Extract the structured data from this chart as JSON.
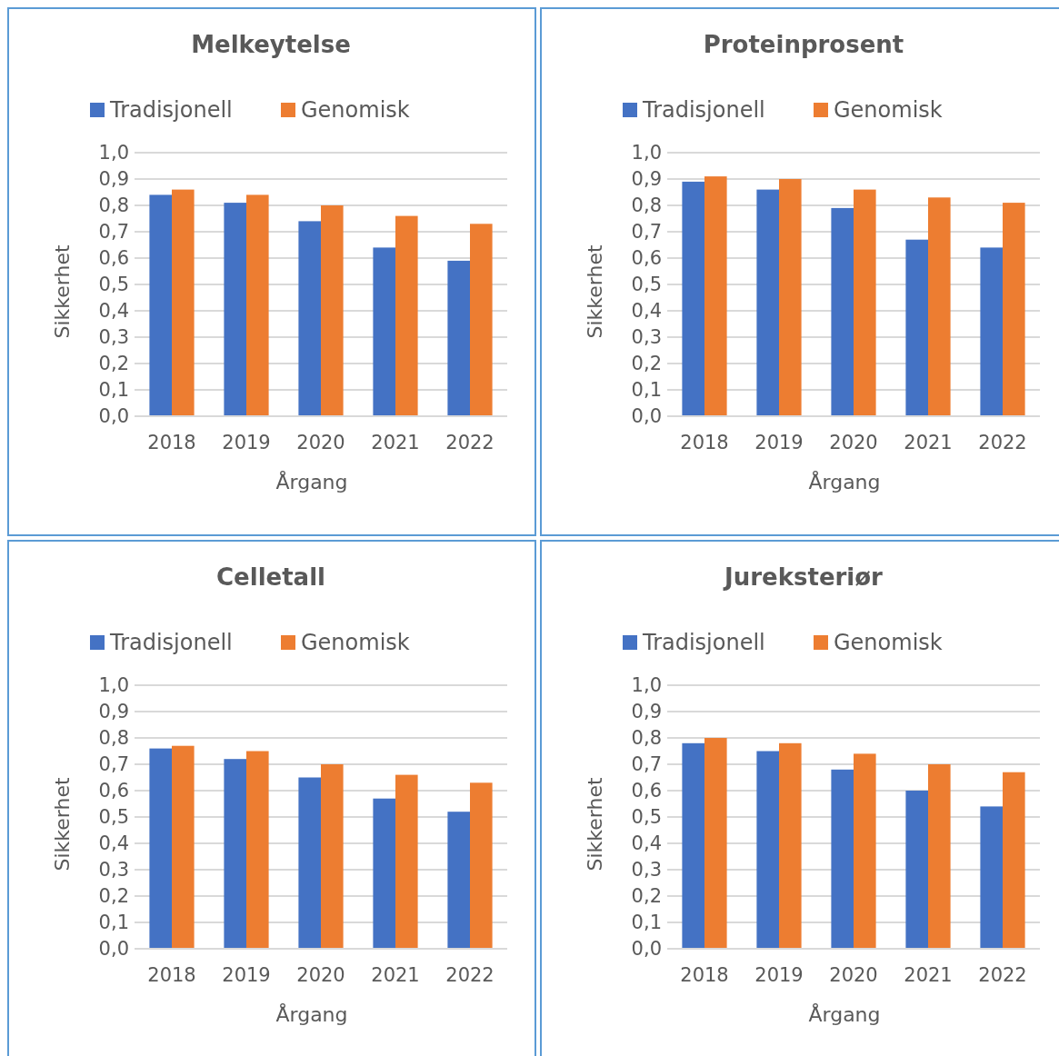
{
  "chart_data": [
    {
      "type": "bar",
      "title": "Melkeytelse",
      "xlabel": "Årgang",
      "ylabel": "Sikkerhet",
      "categories": [
        "2018",
        "2019",
        "2020",
        "2021",
        "2022"
      ],
      "series": [
        {
          "name": "Tradisjonell",
          "color": "#4472c4",
          "values": [
            0.84,
            0.81,
            0.74,
            0.64,
            0.59
          ]
        },
        {
          "name": "Genomisk",
          "color": "#ed7d31",
          "values": [
            0.86,
            0.84,
            0.8,
            0.76,
            0.73
          ]
        }
      ],
      "ylim": [
        0,
        1
      ],
      "yticks": [
        {
          "value": 0,
          "label": "0,0"
        },
        {
          "value": 0.1,
          "label": "0,1"
        },
        {
          "value": 0.2,
          "label": "0,2"
        },
        {
          "value": 0.3,
          "label": "0,3"
        },
        {
          "value": 0.4,
          "label": "0,4"
        },
        {
          "value": 0.5,
          "label": "0,5"
        },
        {
          "value": 0.6,
          "label": "0,6"
        },
        {
          "value": 0.7,
          "label": "0,7"
        },
        {
          "value": 0.8,
          "label": "0,8"
        },
        {
          "value": 0.9,
          "label": "0,9"
        },
        {
          "value": 1,
          "label": "1,0"
        }
      ],
      "grid": "y",
      "legend": "top"
    },
    {
      "type": "bar",
      "title": "Proteinprosent",
      "xlabel": "Årgang",
      "ylabel": "Sikkerhet",
      "categories": [
        "2018",
        "2019",
        "2020",
        "2021",
        "2022"
      ],
      "series": [
        {
          "name": "Tradisjonell",
          "color": "#4472c4",
          "values": [
            0.89,
            0.86,
            0.79,
            0.67,
            0.64
          ]
        },
        {
          "name": "Genomisk",
          "color": "#ed7d31",
          "values": [
            0.91,
            0.9,
            0.86,
            0.83,
            0.81
          ]
        }
      ],
      "ylim": [
        0,
        1
      ],
      "yticks": [
        {
          "value": 0,
          "label": "0,0"
        },
        {
          "value": 0.1,
          "label": "0,1"
        },
        {
          "value": 0.2,
          "label": "0,2"
        },
        {
          "value": 0.3,
          "label": "0,3"
        },
        {
          "value": 0.4,
          "label": "0,4"
        },
        {
          "value": 0.5,
          "label": "0,5"
        },
        {
          "value": 0.6,
          "label": "0,6"
        },
        {
          "value": 0.7,
          "label": "0,7"
        },
        {
          "value": 0.8,
          "label": "0,8"
        },
        {
          "value": 0.9,
          "label": "0,9"
        },
        {
          "value": 1,
          "label": "1,0"
        }
      ],
      "grid": "y",
      "legend": "top"
    },
    {
      "type": "bar",
      "title": "Celletall",
      "xlabel": "Årgang",
      "ylabel": "Sikkerhet",
      "categories": [
        "2018",
        "2019",
        "2020",
        "2021",
        "2022"
      ],
      "series": [
        {
          "name": "Tradisjonell",
          "color": "#4472c4",
          "values": [
            0.76,
            0.72,
            0.65,
            0.57,
            0.52
          ]
        },
        {
          "name": "Genomisk",
          "color": "#ed7d31",
          "values": [
            0.77,
            0.75,
            0.7,
            0.66,
            0.63
          ]
        }
      ],
      "ylim": [
        0,
        1
      ],
      "yticks": [
        {
          "value": 0,
          "label": "0,0"
        },
        {
          "value": 0.1,
          "label": "0,1"
        },
        {
          "value": 0.2,
          "label": "0,2"
        },
        {
          "value": 0.3,
          "label": "0,3"
        },
        {
          "value": 0.4,
          "label": "0,4"
        },
        {
          "value": 0.5,
          "label": "0,5"
        },
        {
          "value": 0.6,
          "label": "0,6"
        },
        {
          "value": 0.7,
          "label": "0,7"
        },
        {
          "value": 0.8,
          "label": "0,8"
        },
        {
          "value": 0.9,
          "label": "0,9"
        },
        {
          "value": 1,
          "label": "1,0"
        }
      ],
      "grid": "y",
      "legend": "top"
    },
    {
      "type": "bar",
      "title": "Jureksteriør",
      "xlabel": "Årgang",
      "ylabel": "Sikkerhet",
      "categories": [
        "2018",
        "2019",
        "2020",
        "2021",
        "2022"
      ],
      "series": [
        {
          "name": "Tradisjonell",
          "color": "#4472c4",
          "values": [
            0.78,
            0.75,
            0.68,
            0.6,
            0.54
          ]
        },
        {
          "name": "Genomisk",
          "color": "#ed7d31",
          "values": [
            0.8,
            0.78,
            0.74,
            0.7,
            0.67
          ]
        }
      ],
      "ylim": [
        0,
        1
      ],
      "yticks": [
        {
          "value": 0,
          "label": "0,0"
        },
        {
          "value": 0.1,
          "label": "0,1"
        },
        {
          "value": 0.2,
          "label": "0,2"
        },
        {
          "value": 0.3,
          "label": "0,3"
        },
        {
          "value": 0.4,
          "label": "0,4"
        },
        {
          "value": 0.5,
          "label": "0,5"
        },
        {
          "value": 0.6,
          "label": "0,6"
        },
        {
          "value": 0.7,
          "label": "0,7"
        },
        {
          "value": 0.8,
          "label": "0,8"
        },
        {
          "value": 0.9,
          "label": "0,9"
        },
        {
          "value": 1,
          "label": "1,0"
        }
      ],
      "grid": "y",
      "legend": "top"
    }
  ]
}
